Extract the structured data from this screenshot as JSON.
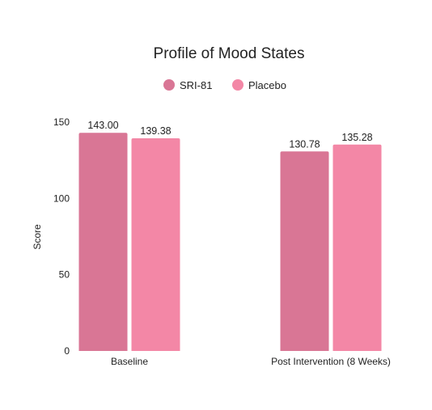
{
  "chart_data": {
    "type": "bar",
    "title": "Profile of Mood States",
    "xlabel": "",
    "ylabel": "Score",
    "categories": [
      "Baseline",
      "Post Intervention (8 Weeks)"
    ],
    "series": [
      {
        "name": "SRI-81",
        "values": [
          143.0,
          130.78
        ],
        "labels": [
          "143.00",
          "130.78"
        ],
        "color": "#d97695"
      },
      {
        "name": "Placebo",
        "values": [
          139.38,
          135.28
        ],
        "labels": [
          "139.38",
          "135.28"
        ],
        "color": "#f387a6"
      }
    ],
    "ylim": [
      0,
      150
    ],
    "yticks": [
      0,
      50,
      100,
      150
    ],
    "grid": false,
    "legend": "top-center"
  }
}
